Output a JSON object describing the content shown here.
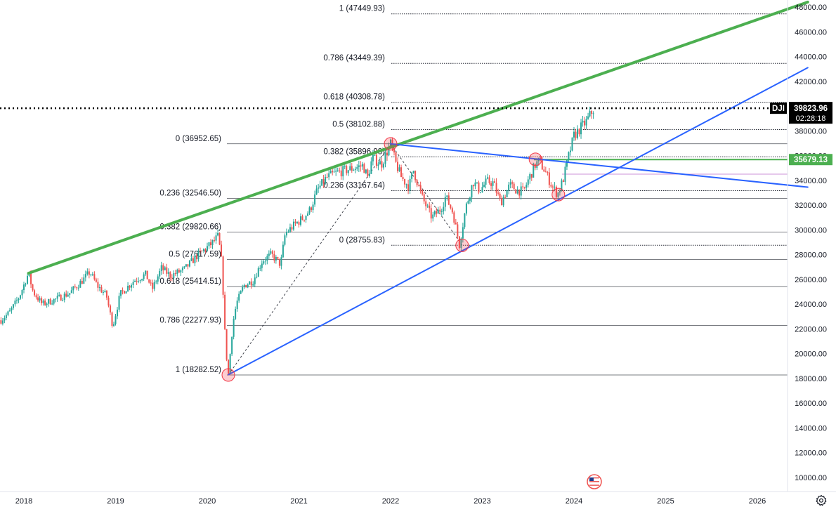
{
  "chart_data": {
    "type": "candlestick",
    "symbol": "DJI",
    "last_price": "39823.96",
    "countdown": "02:28:18",
    "horizontal_level": "35679.13",
    "x_ticks": [
      "2018",
      "2019",
      "2020",
      "2021",
      "2022",
      "2023",
      "2024",
      "2025",
      "2026"
    ],
    "y_ticks": [
      "48000.00",
      "46000.00",
      "44000.00",
      "42000.00",
      "38000.00",
      "36000.00",
      "34000.00",
      "32000.00",
      "30000.00",
      "28000.00",
      "26000.00",
      "24000.00",
      "22000.00",
      "20000.00",
      "18000.00",
      "16000.00",
      "14000.00",
      "12000.00",
      "10000.00"
    ],
    "ylim": [
      9500,
      48600
    ],
    "xlim": [
      2017.74,
      2026.55
    ],
    "price_anchors": [
      [
        2017.75,
        22700
      ],
      [
        2017.85,
        23400
      ],
      [
        2017.95,
        24600
      ],
      [
        2018.05,
        26500
      ],
      [
        2018.1,
        25000
      ],
      [
        2018.2,
        24000
      ],
      [
        2018.35,
        24400
      ],
      [
        2018.5,
        24900
      ],
      [
        2018.65,
        26000
      ],
      [
        2018.72,
        26600
      ],
      [
        2018.8,
        25500
      ],
      [
        2018.9,
        24700
      ],
      [
        2018.97,
        22200
      ],
      [
        2019.05,
        24800
      ],
      [
        2019.2,
        25900
      ],
      [
        2019.33,
        26400
      ],
      [
        2019.4,
        25200
      ],
      [
        2019.5,
        26900
      ],
      [
        2019.6,
        26300
      ],
      [
        2019.75,
        26800
      ],
      [
        2019.9,
        28000
      ],
      [
        2020.05,
        28900
      ],
      [
        2020.12,
        29500
      ],
      [
        2020.16,
        27200
      ],
      [
        2020.2,
        20500
      ],
      [
        2020.23,
        18300
      ],
      [
        2020.28,
        22500
      ],
      [
        2020.32,
        24100
      ],
      [
        2020.4,
        25500
      ],
      [
        2020.5,
        25900
      ],
      [
        2020.6,
        27500
      ],
      [
        2020.7,
        28000
      ],
      [
        2020.8,
        27200
      ],
      [
        2020.85,
        29700
      ],
      [
        2020.95,
        30400
      ],
      [
        2021.05,
        31000
      ],
      [
        2021.12,
        31600
      ],
      [
        2021.2,
        33200
      ],
      [
        2021.3,
        34200
      ],
      [
        2021.4,
        34600
      ],
      [
        2021.5,
        34800
      ],
      [
        2021.6,
        35000
      ],
      [
        2021.7,
        35200
      ],
      [
        2021.75,
        34200
      ],
      [
        2021.8,
        35800
      ],
      [
        2021.9,
        35300
      ],
      [
        2022.0,
        36950
      ],
      [
        2022.05,
        35500
      ],
      [
        2022.12,
        34200
      ],
      [
        2022.2,
        33500
      ],
      [
        2022.25,
        34800
      ],
      [
        2022.35,
        32500
      ],
      [
        2022.45,
        31000
      ],
      [
        2022.55,
        31700
      ],
      [
        2022.6,
        32700
      ],
      [
        2022.68,
        31400
      ],
      [
        2022.75,
        28800
      ],
      [
        2022.82,
        31800
      ],
      [
        2022.9,
        33900
      ],
      [
        2022.97,
        33200
      ],
      [
        2023.05,
        33900
      ],
      [
        2023.12,
        33800
      ],
      [
        2023.2,
        32200
      ],
      [
        2023.3,
        33600
      ],
      [
        2023.38,
        33200
      ],
      [
        2023.45,
        33100
      ],
      [
        2023.5,
        34000
      ],
      [
        2023.58,
        35300
      ],
      [
        2023.62,
        35550
      ],
      [
        2023.68,
        34800
      ],
      [
        2023.75,
        33700
      ],
      [
        2023.82,
        32850
      ],
      [
        2023.88,
        34000
      ],
      [
        2023.95,
        36200
      ],
      [
        2024.0,
        37600
      ],
      [
        2024.08,
        38300
      ],
      [
        2024.14,
        38800
      ],
      [
        2024.2,
        39600
      ],
      [
        2024.23,
        39824
      ]
    ],
    "fib_retracements": [
      {
        "levels": [
          {
            "label": "1 (47449.93)",
            "price": 47449.93
          },
          {
            "label": "0.786 (43449.39)",
            "price": 43449.39
          },
          {
            "label": "0.618 (40308.78)",
            "price": 40308.78
          },
          {
            "label": "0.5 (38102.88)",
            "price": 38102.88
          },
          {
            "label": "0.382 (35896.98)",
            "price": 35896.98
          },
          {
            "label": "0.236 (33167.64)",
            "price": 33167.64
          },
          {
            "label": "0 (28755.83)",
            "price": 28755.83
          }
        ]
      },
      {
        "levels": [
          {
            "label": "0 (36952.65)",
            "price": 36952.65
          },
          {
            "label": "0.236 (32546.50)",
            "price": 32546.5
          },
          {
            "label": "0.382 (29820.66)",
            "price": 29820.66
          },
          {
            "label": "0.5 (27617.59)",
            "price": 27617.59
          },
          {
            "label": "0.618 (25414.51)",
            "price": 25414.51
          },
          {
            "label": "0.786 (22277.93)",
            "price": 22277.93
          },
          {
            "label": "1 (18282.52)",
            "price": 18282.52
          }
        ]
      }
    ],
    "trend_lines": [
      {
        "color": "#4caf50",
        "points": [
          [
            2018.05,
            26500
          ],
          [
            2026.55,
            48400
          ]
        ]
      },
      {
        "color": "#2962ff",
        "points": [
          [
            2020.23,
            18300
          ],
          [
            2026.55,
            43100
          ]
        ]
      },
      {
        "color": "#2962ff",
        "points": [
          [
            2022.0,
            36950
          ],
          [
            2026.55,
            33450
          ]
        ]
      }
    ],
    "markers": [
      {
        "x": 2020.23,
        "y": 18280
      },
      {
        "x": 2022.0,
        "y": 36950
      },
      {
        "x": 2022.78,
        "y": 28750
      },
      {
        "x": 2023.58,
        "y": 35700
      },
      {
        "x": 2023.83,
        "y": 32850
      }
    ],
    "colors": {
      "up": "#26a69a",
      "down": "#ef5350",
      "trend_green": "#4caf50",
      "trend_blue": "#2962ff",
      "level_line": "#131722",
      "marker_fill": "rgba(242,54,69,0.25)",
      "marker_stroke": "#f23645",
      "label_bg": "#000000",
      "level_tag_bg": "#4caf50",
      "pink_line": "#ce93d8"
    },
    "event_icon": "us-flag-icon",
    "settings_icon": "gear-icon"
  }
}
